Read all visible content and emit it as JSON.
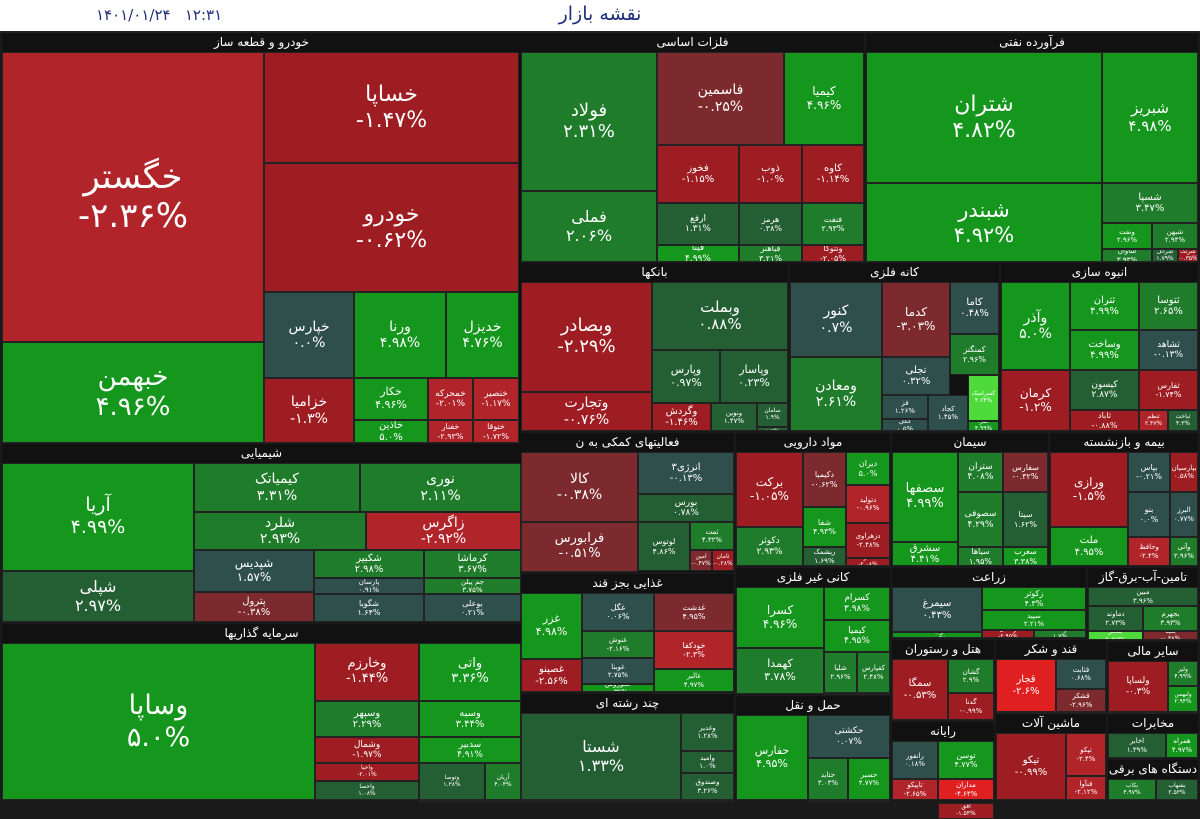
{
  "header": {
    "title": "نقشه بازار",
    "datetime": "۱۴۰۱/۰۱/۲۴   ۱۲:۳۱"
  },
  "sectors": [
    {
      "id": "khodro",
      "label": "خودرو و قطعه ساز",
      "tiles": [
        {
          "name": "خگستر",
          "pct": "-۲.۳۶%"
        },
        {
          "name": "خساپا",
          "pct": "-۱.۴۷%"
        },
        {
          "name": "خودرو",
          "pct": "-۰.۶۲%"
        },
        {
          "name": "خبهمن",
          "pct": "۴.۹۶%"
        },
        {
          "name": "خپارس",
          "pct": "۰.۰%"
        },
        {
          "name": "ورنا",
          "pct": "۴.۹۸%"
        },
        {
          "name": "خدیزل",
          "pct": "۴.۷۶%"
        },
        {
          "name": "خزامیا",
          "pct": "-۱.۳%"
        },
        {
          "name": "خکار",
          "pct": "۴.۹۶%"
        },
        {
          "name": "خمحرکه",
          "pct": "-۲.۰۱%"
        },
        {
          "name": "خنصیر",
          "pct": "-۱.۱۷%"
        },
        {
          "name": "خاذین",
          "pct": "۵.۰%"
        },
        {
          "name": "خفنار",
          "pct": "-۲.۹۳%"
        },
        {
          "name": "ختوقا",
          "pct": "-۱.۷۲%"
        }
      ]
    },
    {
      "id": "felezat",
      "label": "فلزات اساسی",
      "tiles": [
        {
          "name": "فولاد",
          "pct": "۲.۳۱%"
        },
        {
          "name": "فاسمین",
          "pct": "-۰.۲۵%"
        },
        {
          "name": "کیمیا",
          "pct": "۴.۹۶%"
        },
        {
          "name": "فملی",
          "pct": "۲.۰۶%"
        },
        {
          "name": "فخوز",
          "pct": "-۱.۱۵%"
        },
        {
          "name": "ذوب",
          "pct": "-۱.۰%"
        },
        {
          "name": "کاوه",
          "pct": "-۱.۱۴%"
        },
        {
          "name": "ارفع",
          "pct": "۱.۳۱%"
        },
        {
          "name": "هرمز",
          "pct": "۰.۳۸%"
        },
        {
          "name": "فنفت",
          "pct": "۲.۹۳%"
        },
        {
          "name": "فیتا",
          "pct": "۴.۹۹%"
        },
        {
          "name": "فباهنر",
          "pct": "۳.۲۱%"
        },
        {
          "name": "ونتوکا",
          "pct": "-۲.۰۵%"
        }
      ]
    },
    {
      "id": "naft",
      "label": "فرآورده نفتی",
      "tiles": [
        {
          "name": "شتران",
          "pct": "۴.۸۲%"
        },
        {
          "name": "شبریز",
          "pct": "۴.۹۸%"
        },
        {
          "name": "شبندر",
          "pct": "۴.۹۲%"
        },
        {
          "name": "شسپا",
          "pct": "۳.۴۷%"
        },
        {
          "name": "ونفت",
          "pct": "۲.۹۶%"
        },
        {
          "name": "شبهن",
          "pct": "۲.۹۴%"
        },
        {
          "name": "شاوان",
          "pct": "۳.۹۳%"
        },
        {
          "name": "شرانل",
          "pct": "۱.۷۹%"
        },
        {
          "name": "شرنگ",
          "pct": "-۰.۳۵%"
        },
        {
          "name": "شفن",
          "pct": "۴.۹۳%"
        }
      ]
    },
    {
      "id": "bank",
      "label": "بانکها",
      "tiles": [
        {
          "name": "وبصادر",
          "pct": "-۲.۲۹%"
        },
        {
          "name": "وبملت",
          "pct": "۰.۸۸%"
        },
        {
          "name": "وپارس",
          "pct": "۰.۹۷%"
        },
        {
          "name": "وپاسار",
          "pct": "۰.۲۳%"
        },
        {
          "name": "وتجارت",
          "pct": "-۰.۷۶%"
        },
        {
          "name": "وگردش",
          "pct": "-۱.۴۶%"
        },
        {
          "name": "ونوین",
          "pct": "۱.۴۷%"
        },
        {
          "name": "سامان",
          "pct": "۱.۹%"
        },
        {
          "name": "سمایه",
          "pct": "۱.۲%"
        }
      ]
    },
    {
      "id": "kane",
      "label": "کانه فلزی",
      "tiles": [
        {
          "name": "کنور",
          "pct": "۰.۷%"
        },
        {
          "name": "کدما",
          "pct": "-۳.۰۳%"
        },
        {
          "name": "کاما",
          "pct": "۰.۴۸%"
        },
        {
          "name": "کمنگنز",
          "pct": "۲.۹۶%"
        },
        {
          "name": "تجلی",
          "pct": "۰.۳۲%"
        },
        {
          "name": "ومعادن",
          "pct": "۲.۶۱%"
        },
        {
          "name": "فز",
          "pct": "۱.۲۶%"
        },
        {
          "name": "کگل",
          "pct": "۰.۵%"
        },
        {
          "name": "کجاد",
          "pct": "۱.۴۵%"
        },
        {
          "name": "کسرامیک",
          "pct": "۴.۶۴%"
        },
        {
          "name": "کفرا",
          "pct": "۴.۹۹%"
        }
      ]
    },
    {
      "id": "anbooh",
      "label": "انبوه سازی",
      "tiles": [
        {
          "name": "وآذر",
          "pct": "۵.۰%"
        },
        {
          "name": "ثتران",
          "pct": "۴.۹۹%"
        },
        {
          "name": "ثتوسا",
          "pct": "۲.۶۵%"
        },
        {
          "name": "وساخت",
          "pct": "۴.۹۹%"
        },
        {
          "name": "ثشاهد",
          "pct": "-۰.۱۳%"
        },
        {
          "name": "کرمان",
          "pct": "-۱.۲%"
        },
        {
          "name": "کیسون",
          "pct": "۲.۸۷%"
        },
        {
          "name": "ثفارس",
          "pct": "-۱.۷۴%"
        },
        {
          "name": "ثاباد",
          "pct": "-۰.۸۸%"
        },
        {
          "name": "ثنظم",
          "pct": "۲.۴۷%"
        },
        {
          "name": "ثباخت",
          "pct": "۴.۳%"
        }
      ]
    },
    {
      "id": "shimi",
      "label": "شیمیایی",
      "tiles": [
        {
          "name": "آریا",
          "pct": "۴.۹۹%"
        },
        {
          "name": "کیمیاتک",
          "pct": "۳.۳۱%"
        },
        {
          "name": "نوری",
          "pct": "۲.۱۱%"
        },
        {
          "name": "شلرد",
          "pct": "۲.۹۳%"
        },
        {
          "name": "زاگرس",
          "pct": "-۲.۹۲%"
        },
        {
          "name": "شپلی",
          "pct": "۲.۹۷%"
        },
        {
          "name": "شپدیس",
          "pct": "۱.۵۷%"
        },
        {
          "name": "شکبیر",
          "pct": "۲.۹۸%"
        },
        {
          "name": "کرماشا",
          "pct": "۳.۶۷%"
        },
        {
          "name": "پارسان",
          "pct": "۰.۹۱%"
        },
        {
          "name": "جم پیلن",
          "pct": "۳.۷۵%"
        },
        {
          "name": "پترول",
          "pct": "-۰.۳۸%"
        },
        {
          "name": "شگویا",
          "pct": "۱.۶۴%"
        },
        {
          "name": "بوعلی",
          "pct": "۰.۲۱%"
        }
      ]
    },
    {
      "id": "sarmaye",
      "label": "سرمایه گذاریها",
      "tiles": [
        {
          "name": "وساپا",
          "pct": "۵.۰%"
        },
        {
          "name": "وخارزم",
          "pct": "-۱.۴۴%"
        },
        {
          "name": "واتی",
          "pct": "۳.۳۶%"
        },
        {
          "name": "وسپهر",
          "pct": "۲.۲۹%"
        },
        {
          "name": "وسبه",
          "pct": "۳.۴۴%"
        },
        {
          "name": "وشمال",
          "pct": "-۱.۹۷%"
        },
        {
          "name": "سدبیر",
          "pct": "۴.۹۱%"
        },
        {
          "name": "واحیا",
          "pct": "-۲.۰۱%"
        },
        {
          "name": "وتوصا",
          "pct": "۱.۳۸%"
        },
        {
          "name": "آریان",
          "pct": "۴.۰۴%"
        },
        {
          "name": "واحصا",
          "pct": "۱.۰۸%"
        },
        {
          "name": "وسبحان",
          "pct": "۳.۱۳%"
        },
        {
          "name": "ومهان",
          "pct": "۴.۱۲%"
        }
      ]
    },
    {
      "id": "komaki",
      "label": "فعالیتهای کمکی به ن",
      "tiles": [
        {
          "name": "کالا",
          "pct": "-۰.۳۸%"
        },
        {
          "name": "انرژی۳",
          "pct": "-۰.۱۳%"
        },
        {
          "name": "بورس",
          "pct": "۰.۷۸%"
        },
        {
          "name": "فرابورس",
          "pct": "-۰.۵۱%"
        },
        {
          "name": "لوتوس",
          "pct": "۴.۸۶%"
        },
        {
          "name": "ثمت",
          "pct": "۴.۳۲%"
        },
        {
          "name": "امین",
          "pct": "-۰.۴۷%"
        },
        {
          "name": "ثامان",
          "pct": "-۰.۲۸%"
        }
      ]
    },
    {
      "id": "daroo",
      "label": "مواد دارویی",
      "tiles": [
        {
          "name": "برکت",
          "pct": "-۱.۰۵%"
        },
        {
          "name": "دکیمیا",
          "pct": "-۰.۶۲%"
        },
        {
          "name": "دیران",
          "pct": "۵.۰%"
        },
        {
          "name": "شفا",
          "pct": "۴.۹۳%"
        },
        {
          "name": "دتولید",
          "pct": "-۰.۹۶%"
        },
        {
          "name": "دکوثر",
          "pct": "۲.۹۳%"
        },
        {
          "name": "ریشمک",
          "pct": "۱.۶۹%"
        },
        {
          "name": "دزهراوی",
          "pct": "-۲.۴۸%"
        },
        {
          "name": "دفارا",
          "pct": "-۲.۰۸%"
        }
      ]
    },
    {
      "id": "siman",
      "label": "سیمان",
      "tiles": [
        {
          "name": "سصفها",
          "pct": "۴.۹۹%"
        },
        {
          "name": "ستران",
          "pct": "۴.۰۸%"
        },
        {
          "name": "سصوفی",
          "pct": "۴.۲۹%"
        },
        {
          "name": "سفارس",
          "pct": "-۰.۳۲%"
        },
        {
          "name": "سیتا",
          "pct": "۱.۶۲%"
        },
        {
          "name": "سشرق",
          "pct": "۴.۴۱%"
        },
        {
          "name": "سیاها",
          "pct": "۱.۹۵%"
        },
        {
          "name": "سغرب",
          "pct": "۳.۳۸%"
        }
      ]
    },
    {
      "id": "bime",
      "label": "بیمه و بازنشسته",
      "tiles": [
        {
          "name": "ورازی",
          "pct": "-۱.۵%"
        },
        {
          "name": "بپاس",
          "pct": "-۰.۲۱%"
        },
        {
          "name": "بپارسیان",
          "pct": "۰.۵۸%"
        },
        {
          "name": "بنو",
          "pct": "۰.۰%"
        },
        {
          "name": "البرز",
          "pct": "۰.۷۷%"
        },
        {
          "name": "ملت",
          "pct": "۴.۹۵%"
        },
        {
          "name": "وحافظ",
          "pct": "-۲.۴%"
        },
        {
          "name": "وآتی",
          "pct": "۲.۹۶%"
        }
      ]
    },
    {
      "id": "ghaza",
      "label": "غذایی بجز قند",
      "tiles": [
        {
          "name": "غزر",
          "pct": "۴.۹۸%"
        },
        {
          "name": "غگل",
          "pct": "۰.۰۶%"
        },
        {
          "name": "غدشت",
          "pct": "۴.۹۵%"
        },
        {
          "name": "خودکفا",
          "pct": "-۲.۳%"
        },
        {
          "name": "غصینو",
          "pct": "-۲.۵۶%"
        },
        {
          "name": "غنوش",
          "pct": "-۲.۱۶%"
        },
        {
          "name": "غویتا",
          "pct": "۲.۷۵%"
        },
        {
          "name": "غکوروش",
          "pct": "۰.۳۹%"
        },
        {
          "name": "غالبر",
          "pct": "۴.۹۷%"
        },
        {
          "name": "غبهار",
          "pct": "۲.۸۲%"
        }
      ]
    },
    {
      "id": "kani",
      "label": "کانی غیر فلزی",
      "tiles": [
        {
          "name": "کسرا",
          "pct": "۴.۹۶%"
        },
        {
          "name": "کسرام",
          "pct": "۳.۹۸%"
        },
        {
          "name": "کیمیا",
          "pct": "۴.۹۵%"
        },
        {
          "name": "کهمدا",
          "pct": "۳.۷۸%"
        },
        {
          "name": "شلیا",
          "pct": "۲.۹۶%"
        },
        {
          "name": "کفپارس",
          "pct": "۲.۴۸%"
        },
        {
          "name": "کساوه",
          "pct": "۰.۳۶%"
        }
      ]
    },
    {
      "id": "zeraat",
      "label": "زراعت",
      "tiles": [
        {
          "name": "سیمرغ",
          "pct": "۰.۴۳%"
        },
        {
          "name": "زکوثر",
          "pct": "۴.۳%"
        },
        {
          "name": "زبینا",
          "pct": "۵.۰%"
        },
        {
          "name": "سپید",
          "pct": "۲.۲۱%"
        },
        {
          "name": "زماهان",
          "pct": "-۲.۹۵%"
        },
        {
          "name": "زشت",
          "pct": "۱.۷%"
        }
      ]
    },
    {
      "id": "tamin",
      "label": "تامین-آب-برق-گاز",
      "tiles": [
        {
          "name": "مبین",
          "pct": "۳.۹۶%"
        },
        {
          "name": "دماوند",
          "pct": "۲.۷۳%"
        },
        {
          "name": "بجهرم",
          "pct": "۳.۹۳%"
        },
        {
          "name": "بفجر",
          "pct": "۹.۹۷%"
        },
        {
          "name": "بمپنا",
          "pct": "-۰.۳۸%"
        }
      ]
    },
    {
      "id": "hami",
      "label": "حمل و نقل",
      "tiles": [
        {
          "name": "حفارس",
          "pct": "۴.۹۵%"
        },
        {
          "name": "حکشتی",
          "pct": "۰.۰۷%"
        },
        {
          "name": "حتاید",
          "pct": "۳.۰۳%"
        },
        {
          "name": "حسیر",
          "pct": "۴.۷۷%"
        },
        {
          "name": "حپارس",
          "pct": "۰.۵۴%"
        }
      ]
    },
    {
      "id": "hotel",
      "label": "هتل و رستوران",
      "tiles": [
        {
          "name": "سمگا",
          "pct": "-۰.۵۳%"
        },
        {
          "name": "گشان",
          "pct": "۲.۹%"
        },
        {
          "name": "گدنا",
          "pct": "-۰.۹۹%"
        }
      ]
    },
    {
      "id": "ghand",
      "label": "قند و شکر",
      "tiles": [
        {
          "name": "قجار",
          "pct": "-۲.۶%"
        },
        {
          "name": "قثابت",
          "pct": "۰.۶۸%"
        },
        {
          "name": "قشکر",
          "pct": "-۲.۹۶%"
        },
        {
          "name": "قشهد",
          "pct": "-۲.۱۲%"
        }
      ]
    },
    {
      "id": "sayer",
      "label": "سایر مالی",
      "tiles": [
        {
          "name": "ولساپا",
          "pct": "-۰.۳%"
        },
        {
          "name": "ولیز",
          "pct": "۴.۹۹%"
        },
        {
          "name": "ولبهمن",
          "pct": "۲.۹۴%"
        },
        {
          "name": "ونیکی",
          "pct": "۱.۲۲%"
        }
      ]
    },
    {
      "id": "rayane",
      "label": "رایانه",
      "tiles": [
        {
          "name": "رانفور",
          "pct": "۰.۱۸%"
        },
        {
          "name": "توسن",
          "pct": "۴.۷۷%"
        },
        {
          "name": "تاپیکو",
          "pct": "-۲.۶۵%"
        },
        {
          "name": "مداران",
          "pct": "-۴.۶۴%"
        },
        {
          "name": "افق",
          "pct": "-۱.۵۴%"
        }
      ]
    },
    {
      "id": "mashin",
      "label": "ماشین آلات",
      "tiles": [
        {
          "name": "تیکو",
          "pct": "-۰.۹۹%"
        },
        {
          "name": "تپکو",
          "pct": "-۲.۴%"
        },
        {
          "name": "فنآوا",
          "pct": "-۲.۱۲%"
        }
      ]
    },
    {
      "id": "mokhaberat",
      "label": "مخابرات",
      "tiles": [
        {
          "name": "اخابر",
          "pct": "۱.۳۹%"
        },
        {
          "name": "همراه",
          "pct": "۴.۹۷%"
        }
      ]
    },
    {
      "id": "barghi",
      "label": "دستگاه های برقی",
      "tiles": [
        {
          "name": "بکاب",
          "pct": "۴.۹۷%"
        },
        {
          "name": "بشهاب",
          "pct": "۲.۵۳%"
        }
      ]
    },
    {
      "id": "chand",
      "label": "چند رشته ای",
      "tiles": [
        {
          "name": "شستا",
          "pct": "۱.۳۳%"
        },
        {
          "name": "وغدیر",
          "pct": "۱.۲۸%"
        },
        {
          "name": "وامید",
          "pct": "۱.۰%"
        },
        {
          "name": "وصندوق",
          "pct": "۳.۲۶%"
        },
        {
          "name": "وشوکا",
          "pct": "۲.۰۳%"
        }
      ]
    }
  ]
}
